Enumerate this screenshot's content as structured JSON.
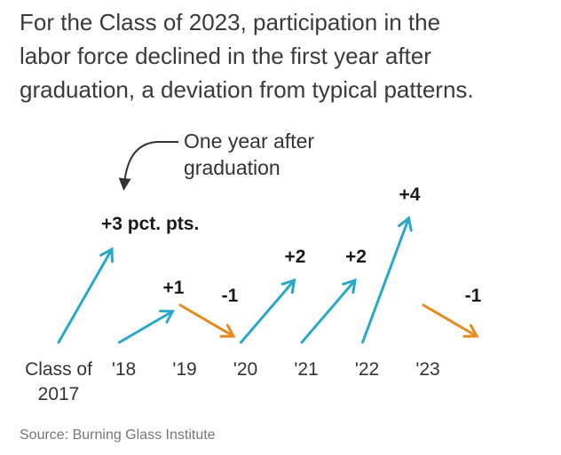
{
  "title_lines": [
    "For the Class of 2023, participation in the",
    "labor force declined in the first year after",
    "graduation, a deviation from typical patterns."
  ],
  "source": "Source: Burning Glass Institute",
  "colors": {
    "increase": "#2aa8c9",
    "decrease": "#e8891c",
    "text": "#333333",
    "value_text": "#1a1a1a"
  },
  "chart_data": {
    "type": "arrow",
    "title": "For the Class of 2023, participation in the labor force declined in the first year after graduation, a deviation from typical patterns.",
    "ylabel": "",
    "unit": "pct. pts.",
    "categories": [
      "Class of 2017",
      "'18",
      "'19",
      "'20",
      "'21",
      "'22",
      "'23"
    ],
    "tick_labels": [
      [
        "Class of",
        "2017"
      ],
      [
        "'18"
      ],
      [
        "'19"
      ],
      [
        "'20"
      ],
      [
        "'21"
      ],
      [
        "'22"
      ],
      [
        "'23"
      ]
    ],
    "values": [
      3,
      1,
      -1,
      2,
      2,
      4,
      -1
    ],
    "value_labels": [
      "+3 pct. pts.",
      "+1",
      "-1",
      "+2",
      "+2",
      "+4",
      "-1"
    ],
    "annotation": {
      "lines": [
        "One year after",
        "graduation"
      ],
      "points_to": 0
    }
  }
}
